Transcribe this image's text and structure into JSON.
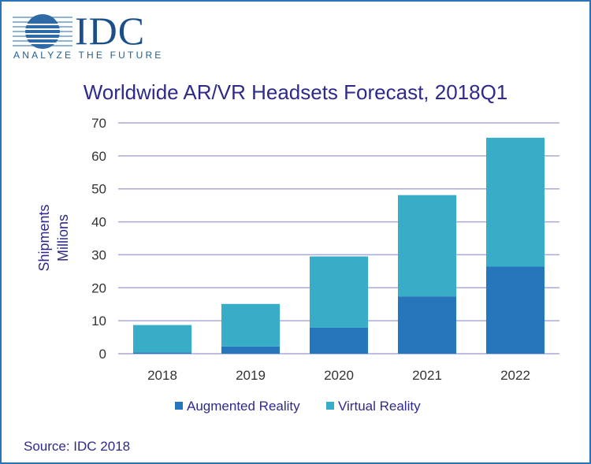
{
  "logo": {
    "text": "IDC",
    "tagline": "ANALYZE THE FUTURE"
  },
  "source": "Source: IDC 2018",
  "chart_data": {
    "type": "bar",
    "stacked": true,
    "title": "Worldwide AR/VR Headsets Forecast, 2018Q1",
    "ylabel": "Shipments\nMillions",
    "xlabel": "",
    "ylim": [
      0,
      70
    ],
    "yticks": [
      0,
      10,
      20,
      30,
      40,
      50,
      60,
      70
    ],
    "grid": true,
    "legend": "bottom",
    "categories": [
      "2018",
      "2019",
      "2020",
      "2021",
      "2022"
    ],
    "series": [
      {
        "name": "Augmented Reality",
        "color": "#2676bc",
        "values": [
          0.4,
          2.2,
          7.9,
          17.4,
          26.4
        ]
      },
      {
        "name": "Virtual Reality",
        "color": "#37adc7",
        "values": [
          8.3,
          12.9,
          21.6,
          30.7,
          39.1
        ]
      }
    ]
  }
}
